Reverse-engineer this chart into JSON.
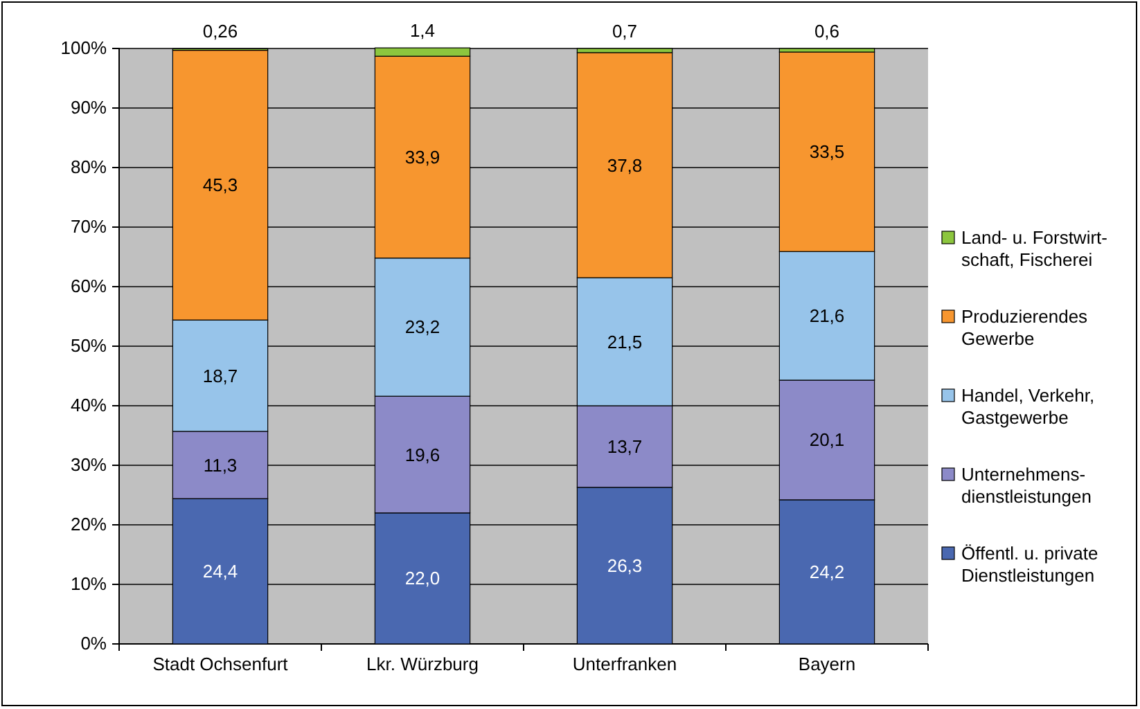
{
  "chart_data": {
    "type": "bar",
    "stacked": true,
    "categories": [
      "Stadt Ochsenfurt",
      "Lkr. Würzburg",
      "Unterfranken",
      "Bayern"
    ],
    "series": [
      {
        "name": "Öffentl. u. private Dienstleistungen",
        "color": "#4a68b0",
        "values": [
          24.4,
          22.0,
          26.3,
          24.2
        ],
        "value_labels": [
          "24,4",
          "22,0",
          "26,3",
          "24,2"
        ]
      },
      {
        "name": "Unternehmens-dienstleistungen",
        "color": "#8c8ac8",
        "values": [
          11.3,
          19.6,
          13.7,
          20.1
        ],
        "value_labels": [
          "11,3",
          "19,6",
          "13,7",
          "20,1"
        ]
      },
      {
        "name": "Handel, Verkehr, Gastgewerbe",
        "color": "#97c4ea",
        "values": [
          18.7,
          23.2,
          21.5,
          21.6
        ],
        "value_labels": [
          "18,7",
          "23,2",
          "21,5",
          "21,6"
        ]
      },
      {
        "name": "Produzierendes Gewerbe",
        "color": "#f7962f",
        "values": [
          45.3,
          33.9,
          37.8,
          33.5
        ],
        "value_labels": [
          "45,3",
          "33,9",
          "37,8",
          "33,5"
        ]
      },
      {
        "name": "Land- u. Forstwirt-schaft, Fischerei",
        "color": "#8cc63e",
        "values": [
          0.26,
          1.4,
          0.7,
          0.6
        ],
        "value_labels": [
          "0,26",
          "1,4",
          "0,7",
          "0,6"
        ]
      }
    ],
    "ylim": [
      0,
      100
    ],
    "yticks": [
      {
        "value": 0,
        "label": "0%"
      },
      {
        "value": 10,
        "label": "10%"
      },
      {
        "value": 20,
        "label": "20%"
      },
      {
        "value": 30,
        "label": "30%"
      },
      {
        "value": 40,
        "label": "40%"
      },
      {
        "value": 50,
        "label": "50%"
      },
      {
        "value": 60,
        "label": "60%"
      },
      {
        "value": 70,
        "label": "70%"
      },
      {
        "value": 80,
        "label": "80%"
      },
      {
        "value": 90,
        "label": "90%"
      },
      {
        "value": 100,
        "label": "100%"
      }
    ],
    "grid": "y",
    "legend": "right"
  }
}
